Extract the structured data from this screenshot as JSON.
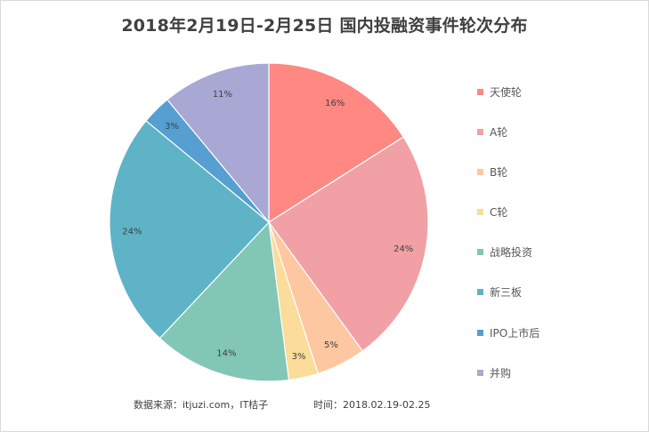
{
  "chart_data": {
    "type": "pie",
    "title": "2018年2月19日-2月25日 国内投融资事件轮次分布",
    "slices": [
      {
        "label": "天使轮",
        "value": 16,
        "display": "16%",
        "color": "#ff8883"
      },
      {
        "label": "A轮",
        "value": 24,
        "display": "24%",
        "color": "#f1a0a5"
      },
      {
        "label": "B轮",
        "value": 5,
        "display": "5%",
        "color": "#fdc7a2"
      },
      {
        "label": "C轮",
        "value": 3,
        "display": "3%",
        "color": "#fcdc9a"
      },
      {
        "label": "战略投资",
        "value": 14,
        "display": "14%",
        "color": "#82c6b6"
      },
      {
        "label": "新三板",
        "value": 24,
        "display": "24%",
        "color": "#5fb3c6"
      },
      {
        "label": "IPO上市后",
        "value": 3,
        "display": "3%",
        "color": "#559fd1"
      },
      {
        "label": "并购",
        "value": 11,
        "display": "11%",
        "color": "#a9a8d4"
      }
    ],
    "legend_position": "right",
    "start_angle_deg": 0,
    "direction": "clockwise"
  },
  "footer": {
    "source": "数据来源：itjuzi.com，IT桔子",
    "time": "时间：2018.02.19-02.25"
  }
}
